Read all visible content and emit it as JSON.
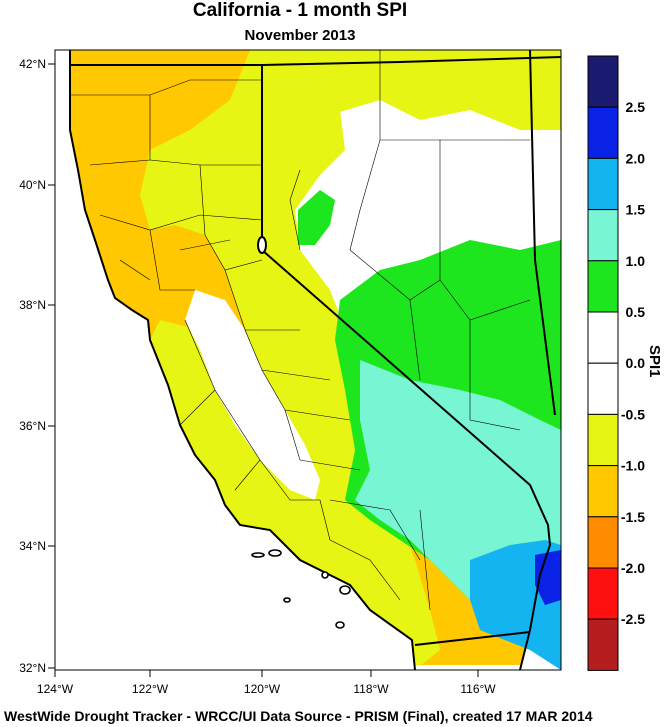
{
  "title": "California - 1 month SPI",
  "subtitle": "November 2013",
  "footer": "WestWide Drought Tracker - WRCC/UI  Data Source - PRISM (Final), created 17 MAR 2014",
  "legend": {
    "label": "SPI1",
    "bins": [
      {
        "color": "#1a1a6e"
      },
      {
        "color": "#0a22e6"
      },
      {
        "color": "#14b4f0"
      },
      {
        "color": "#78f5d2"
      },
      {
        "color": "#1ee61e"
      },
      {
        "color": "#ffffff"
      },
      {
        "color": "#ffffff"
      },
      {
        "color": "#e6f514"
      },
      {
        "color": "#ffc800"
      },
      {
        "color": "#ff8c00"
      },
      {
        "color": "#ff1010"
      },
      {
        "color": "#b41e1e"
      }
    ],
    "tick_labels": [
      "2.5",
      "2.0",
      "1.5",
      "1.0",
      "0.5",
      "0.0",
      "-0.5",
      "-1.0",
      "-1.5",
      "-2.0",
      "-2.5"
    ]
  },
  "axes": {
    "lat_labels": [
      "42°N",
      "40°N",
      "38°N",
      "36°N",
      "34°N",
      "32°N"
    ],
    "lon_labels": [
      "124°W",
      "122°W",
      "120°W",
      "118°W",
      "116°W"
    ]
  },
  "colors": {
    "dry_moderate": "#ffc800",
    "dry_mild": "#e6f514",
    "normal": "#ffffff",
    "wet_moderate": "#1ee61e",
    "wet_severe": "#78f5d2",
    "wet_very": "#14b4f0",
    "wet_extreme": "#0a22e6"
  }
}
